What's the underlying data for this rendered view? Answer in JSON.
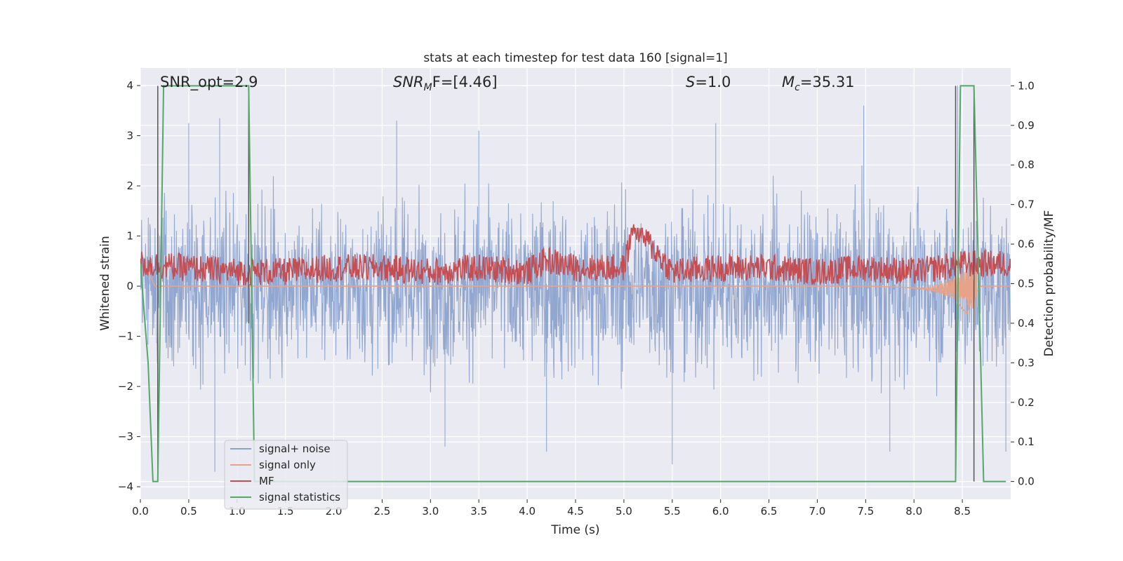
{
  "chart_data": {
    "type": "line",
    "title": "stats at each timestep for test data 160 [signal=1]",
    "xlabel": "Time (s)",
    "ylabel": "Whitened strain",
    "ylabel_right": "Detection probability/MF",
    "xlim": [
      0.0,
      9.0
    ],
    "ylim": [
      -4.25,
      4.35
    ],
    "ylim_right": [
      -0.045,
      1.045
    ],
    "x_ticks": [
      "0.0",
      "0.5",
      "1.0",
      "1.5",
      "2.0",
      "2.5",
      "3.0",
      "3.5",
      "4.0",
      "4.5",
      "5.0",
      "5.5",
      "6.0",
      "6.5",
      "7.0",
      "7.5",
      "8.0",
      "8.5"
    ],
    "y_ticks": [
      "−4",
      "−3",
      "−2",
      "−1",
      "0",
      "1",
      "2",
      "3",
      "4"
    ],
    "y_ticks_right": [
      "0.0",
      "0.1",
      "0.2",
      "0.3",
      "0.4",
      "0.5",
      "0.6",
      "0.7",
      "0.8",
      "0.9",
      "1.0"
    ],
    "grid": true,
    "legend_position": "lower-left",
    "annotations": {
      "snr_opt": "SNR_opt=2.9",
      "snr_mf_pre": "SNR",
      "snr_mf_sub": "M",
      "snr_mf_post": "F=[4.46]",
      "s_pre": "S",
      "s_post": "=1.0",
      "mc_pre": "M",
      "mc_sub": "c",
      "mc_post": "=35.31"
    },
    "series": [
      {
        "name": "signal+ noise",
        "color": "#8da3cd",
        "axis": "left",
        "description": "whitened noisy strain, dense fluctuation roughly between -2.5 and 2.5 with peaks near ±3.5",
        "envelope_upper": [
          [
            0.0,
            1.8
          ],
          [
            0.5,
            2.2
          ],
          [
            1.0,
            2.1
          ],
          [
            1.5,
            2.0
          ],
          [
            2.0,
            1.9
          ],
          [
            2.5,
            2.1
          ],
          [
            3.0,
            2.0
          ],
          [
            3.5,
            2.1
          ],
          [
            4.0,
            2.0
          ],
          [
            4.5,
            2.2
          ],
          [
            5.0,
            2.1
          ],
          [
            5.5,
            2.0
          ],
          [
            6.0,
            2.2
          ],
          [
            6.5,
            2.1
          ],
          [
            7.0,
            2.0
          ],
          [
            7.5,
            2.3
          ],
          [
            8.0,
            2.0
          ],
          [
            8.5,
            2.1
          ],
          [
            9.0,
            2.0
          ]
        ],
        "notable_peaks": [
          [
            0.5,
            3.25
          ],
          [
            0.82,
            3.35
          ],
          [
            2.65,
            3.3
          ],
          [
            3.5,
            3.1
          ],
          [
            5.95,
            3.25
          ],
          [
            7.48,
            3.6
          ],
          [
            8.45,
            4.0
          ]
        ],
        "notable_troughs": [
          [
            0.77,
            -3.7
          ],
          [
            3.15,
            -3.2
          ],
          [
            4.2,
            -3.3
          ],
          [
            5.5,
            -3.55
          ],
          [
            7.75,
            -3.3
          ],
          [
            8.95,
            -3.3
          ]
        ]
      },
      {
        "name": "signal only",
        "color": "#e6a38a",
        "axis": "left",
        "x": [
          0.0,
          0.08,
          0.15,
          0.3,
          1.0,
          7.5,
          7.9,
          8.1,
          8.3,
          8.4,
          8.45,
          8.5,
          8.55,
          8.6,
          8.7,
          8.9,
          9.0
        ],
        "y": [
          0.45,
          0.3,
          0.0,
          0.0,
          0.0,
          0.0,
          -0.02,
          -0.05,
          -0.12,
          -0.2,
          -0.3,
          -0.45,
          -0.55,
          -0.2,
          0.0,
          0.0,
          0.0
        ]
      },
      {
        "name": "MF",
        "color": "#c44e52",
        "axis": "right",
        "description": "matched-filter statistic fluctuating around 0.53 between about 0.49 and 0.62, peak 0.65 near t=5.1",
        "x": [
          0.0,
          0.5,
          1.0,
          1.5,
          2.0,
          2.5,
          3.0,
          3.5,
          4.0,
          4.2,
          4.5,
          5.0,
          5.1,
          5.5,
          6.0,
          6.5,
          7.0,
          7.5,
          8.0,
          8.5,
          9.0
        ],
        "y": [
          0.55,
          0.54,
          0.53,
          0.53,
          0.54,
          0.54,
          0.53,
          0.54,
          0.53,
          0.56,
          0.54,
          0.54,
          0.65,
          0.53,
          0.54,
          0.54,
          0.53,
          0.54,
          0.53,
          0.55,
          0.55
        ]
      },
      {
        "name": "signal statistics",
        "color": "#55a868",
        "axis": "right",
        "x": [
          0.0,
          0.08,
          0.13,
          0.18,
          0.24,
          1.12,
          1.18,
          8.43,
          8.48,
          8.62,
          8.72,
          8.95
        ],
        "y": [
          0.55,
          0.3,
          0.0,
          0.0,
          1.0,
          1.0,
          0.0,
          0.0,
          1.0,
          1.0,
          0.0,
          0.0
        ]
      }
    ],
    "vertical_markers": [
      {
        "x": 0.18,
        "from": 0.0,
        "to": 1.0,
        "color": "#555555"
      },
      {
        "x": 1.12,
        "from": 0.4,
        "to": 1.0,
        "color": "#555555"
      },
      {
        "x": 8.43,
        "from": 0.0,
        "to": 1.0,
        "color": "#555555"
      },
      {
        "x": 8.62,
        "from": 0.0,
        "to": 1.0,
        "color": "#555555"
      }
    ]
  }
}
